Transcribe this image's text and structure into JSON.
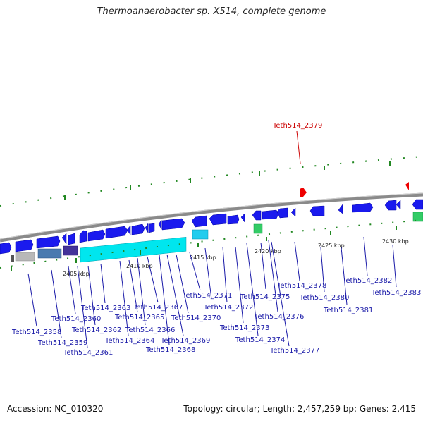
{
  "title": "Thermoanaerobacter sp. X514, complete genome",
  "footer": {
    "accession": "Accession: NC_010320",
    "topology": "Topology: circular; Length: 2,457,259 bp; Genes: 2,415"
  },
  "highlight_label": "Teth514_2379",
  "kbp_labels": [
    "2405 kbp",
    "2410 kbp",
    "2415 kbp",
    "2420 kbp",
    "2425 kbp",
    "2430 kbp"
  ],
  "gene_labels": [
    "Teth514_2358",
    "Teth514_2359",
    "Teth514_2360",
    "Teth514_2361",
    "Teth514_2362",
    "Teth514_2363",
    "Teth514_2364",
    "Teth514_2365",
    "Teth514_2366",
    "Teth514_2367",
    "Teth514_2368",
    "Teth514_2369",
    "Teth514_2370",
    "Teth514_2371",
    "Teth514_2372",
    "Teth514_2373",
    "Teth514_2374",
    "Teth514_2375",
    "Teth514_2376",
    "Teth514_2377",
    "Teth514_2378",
    "Teth514_2380",
    "Teth514_2381",
    "Teth514_2382",
    "Teth514_2383"
  ],
  "colors": {
    "forward_gene": "#1a1aee",
    "rna_gene": "#00e6ee",
    "highlight": "#ee0000",
    "green_feature": "#33cc66",
    "tick_green": "#228822",
    "backbone": "#888888"
  }
}
